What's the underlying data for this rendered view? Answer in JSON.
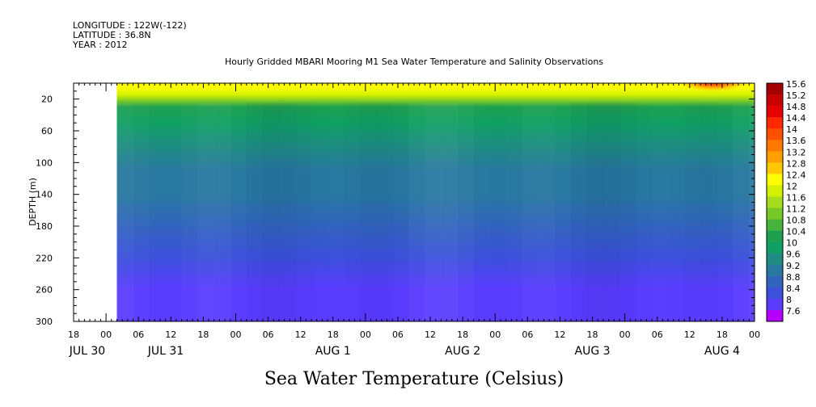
{
  "header": {
    "longitude": "LONGITUDE : 122W(-122)",
    "latitude": "LATITUDE : 36.8N",
    "year": "YEAR : 2012"
  },
  "chart_data": {
    "type": "heatmap",
    "title": "Hourly Gridded MBARI Mooring M1 Sea Water Temperature and Salinity Observations",
    "caption": "Sea Water Temperature (Celsius)",
    "ylabel": "DEPTH (m)",
    "ylim": [
      300,
      0
    ],
    "y_ticks": [
      20,
      60,
      100,
      140,
      180,
      220,
      260,
      300
    ],
    "x_range_hours": [
      "2012-07-30 18:00",
      "2012-08-04 24:00"
    ],
    "data_start": "2012-07-31 02:00",
    "hour_ticks": [
      "18",
      "00",
      "06",
      "12",
      "18",
      "00",
      "06",
      "12",
      "18",
      "00",
      "06",
      "12",
      "18",
      "00",
      "06",
      "12",
      "18",
      "00",
      "06",
      "12",
      "18",
      "00",
      "06",
      "12",
      "18"
    ],
    "date_labels": [
      "JUL 30",
      "JUL 31",
      "AUG  1",
      "AUG  2",
      "AUG  3",
      "AUG  4"
    ],
    "colorbar_levels": [
      "15.6",
      "15.2",
      "14.8",
      "14.4",
      "14",
      "13.6",
      "13.2",
      "12.8",
      "12.4",
      "12",
      "11.6",
      "11.2",
      "10.8",
      "10.4",
      "10",
      "9.6",
      "9.2",
      "8.8",
      "8.4",
      "8",
      "7.6"
    ],
    "colorbar_colors": [
      "#a50000",
      "#c80000",
      "#e60000",
      "#ff2800",
      "#ff5000",
      "#ff7800",
      "#ffa000",
      "#ffc800",
      "#ffff00",
      "#d2f000",
      "#a6dc1e",
      "#78c828",
      "#46b43c",
      "#1ea050",
      "#10a064",
      "#1e8c82",
      "#2878a0",
      "#3264be",
      "#3c50dc",
      "#5a3cff",
      "#b400ff"
    ],
    "depth_profile": [
      {
        "depth": 5,
        "temp": 12.6
      },
      {
        "depth": 15,
        "temp": 12.0
      },
      {
        "depth": 30,
        "temp": 10.6
      },
      {
        "depth": 50,
        "temp": 10.1
      },
      {
        "depth": 80,
        "temp": 9.8
      },
      {
        "depth": 110,
        "temp": 9.5
      },
      {
        "depth": 140,
        "temp": 9.2
      },
      {
        "depth": 180,
        "temp": 8.9
      },
      {
        "depth": 220,
        "temp": 8.6
      },
      {
        "depth": 260,
        "temp": 8.3
      },
      {
        "depth": 300,
        "temp": 8.0
      }
    ],
    "surface_warm_event": {
      "date": "AUG 4",
      "max_temp": 15.4
    }
  }
}
